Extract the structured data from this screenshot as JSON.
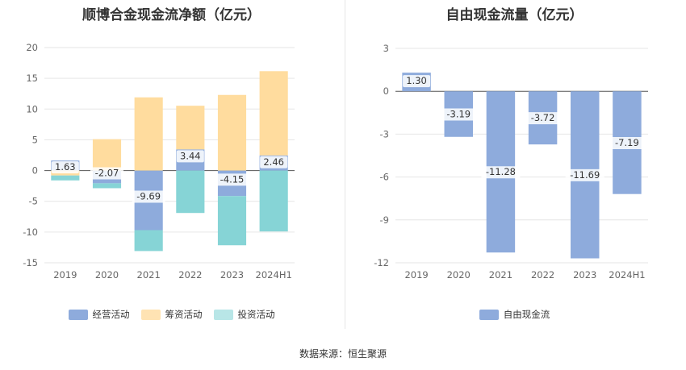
{
  "colors": {
    "operating": "#8eabdc",
    "financing": "#ffdc9e",
    "investing": "#86d4d6",
    "fcf": "#8eabdc"
  },
  "chart_data": [
    {
      "type": "bar",
      "stacked": true,
      "title": "顺博合金现金流净额（亿元）",
      "categories": [
        "2019",
        "2020",
        "2021",
        "2022",
        "2023",
        "2024H1"
      ],
      "series": [
        {
          "name": "经营活动",
          "values": [
            1.63,
            -2.07,
            -9.69,
            3.44,
            -4.15,
            2.46
          ],
          "color_key": "operating"
        },
        {
          "name": "筹资活动",
          "values": [
            -0.8,
            5.1,
            11.9,
            7.1,
            12.3,
            13.7
          ],
          "color_key": "financing"
        },
        {
          "name": "投资活动",
          "values": [
            -0.8,
            -0.8,
            -3.4,
            -6.9,
            -8.0,
            -9.9
          ],
          "color_key": "investing"
        }
      ],
      "data_labels": [
        "1.63",
        "-2.07",
        "-9.69",
        "3.44",
        "-4.15",
        "2.46"
      ],
      "ylim": [
        -15,
        20
      ],
      "yticks": [
        20,
        15,
        10,
        5,
        0,
        -5,
        -10,
        -15
      ],
      "grid": true,
      "legend_position": "bottom"
    },
    {
      "type": "bar",
      "title": "自由现金流量（亿元）",
      "categories": [
        "2019",
        "2020",
        "2021",
        "2022",
        "2023",
        "2024H1"
      ],
      "series": [
        {
          "name": "自由现金流",
          "values": [
            1.3,
            -3.19,
            -11.28,
            -3.72,
            -11.69,
            -7.19
          ],
          "color_key": "fcf"
        }
      ],
      "data_labels": [
        "1.30",
        "-3.19",
        "-11.28",
        "-3.72",
        "-11.69",
        "-7.19"
      ],
      "ylim": [
        -12,
        3
      ],
      "yticks": [
        3,
        0,
        -3,
        -6,
        -9,
        -12
      ],
      "grid": true,
      "legend_position": "bottom"
    }
  ],
  "source_text": "数据来源：恒生聚源"
}
